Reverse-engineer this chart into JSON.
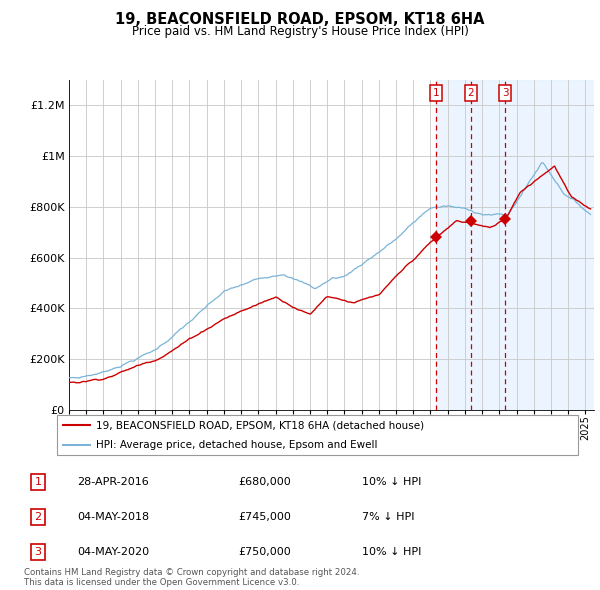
{
  "title": "19, BEACONSFIELD ROAD, EPSOM, KT18 6HA",
  "subtitle": "Price paid vs. HM Land Registry's House Price Index (HPI)",
  "legend_line1": "19, BEACONSFIELD ROAD, EPSOM, KT18 6HA (detached house)",
  "legend_line2": "HPI: Average price, detached house, Epsom and Ewell",
  "footnote1": "Contains HM Land Registry data © Crown copyright and database right 2024.",
  "footnote2": "This data is licensed under the Open Government Licence v3.0.",
  "hpi_color": "#7ab4d8",
  "price_color": "#cc0000",
  "shade_color": "#ddeeff",
  "transactions": [
    {
      "num": 1,
      "date": "28-APR-2016",
      "year": 2016.33,
      "price": 680000,
      "label": "10% ↓ HPI"
    },
    {
      "num": 2,
      "date": "04-MAY-2018",
      "year": 2018.34,
      "price": 745000,
      "label": "7% ↓ HPI"
    },
    {
      "num": 3,
      "date": "04-MAY-2020",
      "year": 2020.34,
      "price": 750000,
      "label": "10% ↓ HPI"
    }
  ],
  "ylim": [
    0,
    1300000
  ],
  "xlim_start": 1995.0,
  "xlim_end": 2025.5,
  "shade_start": 2016.33,
  "yticks": [
    0,
    200000,
    400000,
    600000,
    800000,
    1000000,
    1200000
  ],
  "ytick_labels": [
    "£0",
    "£200K",
    "£400K",
    "£600K",
    "£800K",
    "£1M",
    "£1.2M"
  ]
}
